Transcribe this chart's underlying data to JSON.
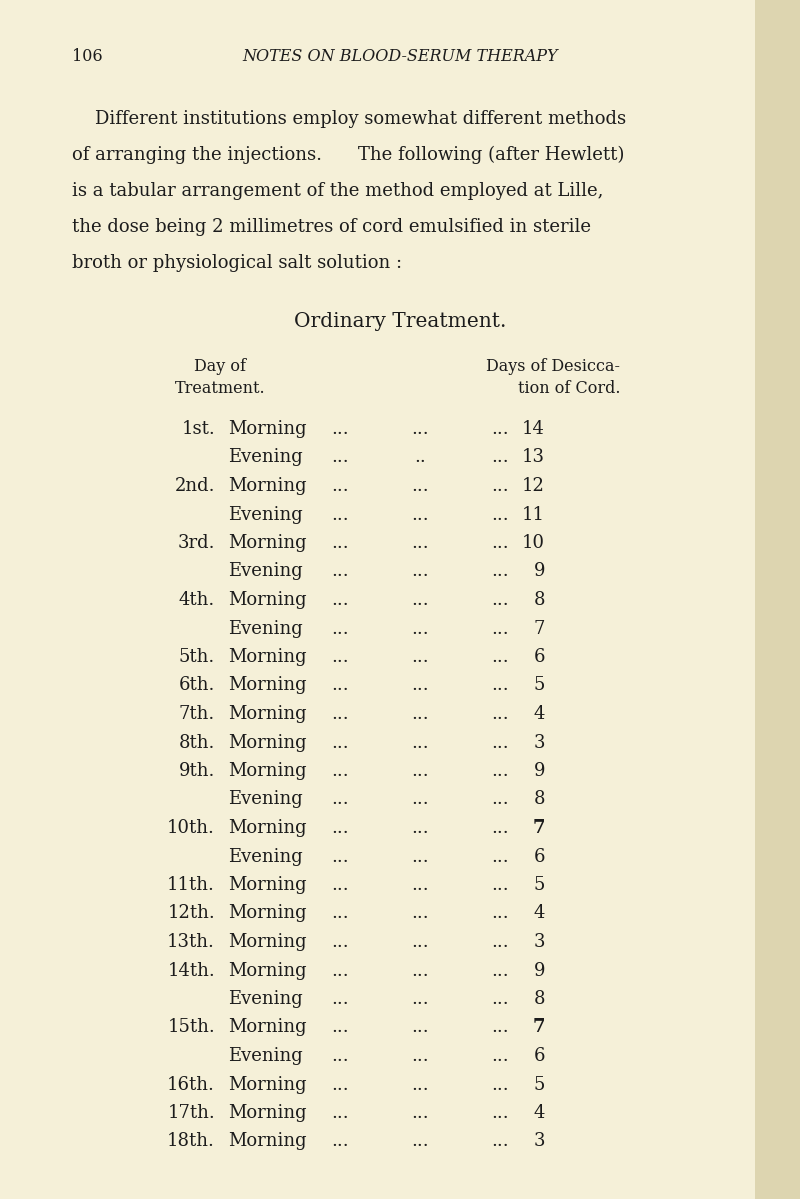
{
  "bg_color": "#f5f0d8",
  "right_strip_color": "#e8e0c0",
  "page_number": "106",
  "header_title": "NOTES ON BLOOD-SERUM THERAPY",
  "intro_lines": [
    "    Different institutions employ somewhat different methods",
    "of arranging the injections.  The following (after Hewlett)",
    "is a tabular arrangement of the method employed at Lille,",
    "the dose being 2 millimetres of cord emulsified in sterile",
    "broth or physiological salt solution :"
  ],
  "table_title_1": "O",
  "table_title_2": "RDINARY",
  "table_title_3": " T",
  "table_title_4": "REATMENT.",
  "col1_line1": "Day of",
  "col1_line2": "Treatment.",
  "col2_line1": "Days of Desiccation of Cord.",
  "col2_line1a": "Days of Desicca-",
  "col2_line2": "tion of Cord.",
  "rows": [
    {
      "day": "1st.",
      "time": "Morning",
      "dots2": "...",
      "value": "14",
      "bold": false
    },
    {
      "day": "",
      "time": "Evening",
      "dots2": "..",
      "value": "13",
      "bold": false
    },
    {
      "day": "2nd.",
      "time": "Morning",
      "dots2": "...",
      "value": "12",
      "bold": false
    },
    {
      "day": "",
      "time": "Evening",
      "dots2": "...",
      "value": "11",
      "bold": false
    },
    {
      "day": "3rd.",
      "time": "Morning",
      "dots2": "...",
      "value": "10",
      "bold": false
    },
    {
      "day": "",
      "time": "Evening",
      "dots2": "...",
      "value": "9",
      "bold": false
    },
    {
      "day": "4th.",
      "time": "Morning",
      "dots2": "...",
      "value": "8",
      "bold": false
    },
    {
      "day": "",
      "time": "Evening",
      "dots2": "...",
      "value": "7",
      "bold": false
    },
    {
      "day": "5th.",
      "time": "Morning",
      "dots2": "...",
      "value": "6",
      "bold": false
    },
    {
      "day": "6th.",
      "time": "Morning",
      "dots2": "...",
      "value": "5",
      "bold": false
    },
    {
      "day": "7th.",
      "time": "Morning",
      "dots2": "...",
      "value": "4",
      "bold": false
    },
    {
      "day": "8th.",
      "time": "Morning",
      "dots2": "...",
      "value": "3",
      "bold": false
    },
    {
      "day": "9th.",
      "time": "Morning",
      "dots2": "...",
      "value": "9",
      "bold": false
    },
    {
      "day": "",
      "time": "Evening",
      "dots2": "...",
      "value": "8",
      "bold": false
    },
    {
      "day": "10th.",
      "time": "Morning",
      "dots2": "...",
      "value": "7",
      "bold": true
    },
    {
      "day": "",
      "time": "Evening",
      "dots2": "...",
      "value": "6",
      "bold": false
    },
    {
      "day": "11th.",
      "time": "Morning",
      "dots2": "...",
      "value": "5",
      "bold": false
    },
    {
      "day": "12th.",
      "time": "Morning",
      "dots2": "...",
      "value": "4",
      "bold": false
    },
    {
      "day": "13th.",
      "time": "Morning",
      "dots2": "...",
      "value": "3",
      "bold": false
    },
    {
      "day": "14th.",
      "time": "Morning",
      "dots2": "...",
      "value": "9",
      "bold": false
    },
    {
      "day": "",
      "time": "Evening",
      "dots2": "...",
      "value": "8",
      "bold": false
    },
    {
      "day": "15th.",
      "time": "Morning",
      "dots2": "...",
      "value": "7",
      "bold": true
    },
    {
      "day": "",
      "time": "Evening",
      "dots2": "...",
      "value": "6",
      "bold": false
    },
    {
      "day": "16th.",
      "time": "Morning",
      "dots2": "...",
      "value": "5",
      "bold": false
    },
    {
      "day": "17th.",
      "time": "Morning",
      "dots2": "...",
      "value": "4",
      "bold": false
    },
    {
      "day": "18th.",
      "time": "Morning",
      "dots2": "...",
      "value": "3",
      "bold": false
    }
  ],
  "text_color": "#1c1c1c",
  "fs_page": 11.5,
  "fs_header": 11.5,
  "fs_body": 13.0,
  "fs_table_title": 14.5,
  "fs_col_header": 11.5,
  "fs_row": 13.0
}
